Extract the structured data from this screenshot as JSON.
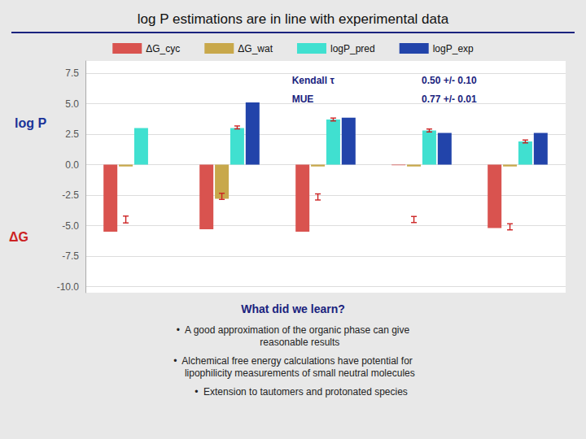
{
  "chart_data": {
    "type": "bar",
    "title": "log P estimations are in line with experimental data",
    "categories": [
      null,
      null,
      null,
      null,
      null
    ],
    "series": [
      {
        "name": "ΔG_cyc",
        "color": "#d9534f",
        "values": [
          -5.5,
          -5.3,
          -5.5,
          -0.05,
          -5.2
        ]
      },
      {
        "name": "ΔG_wat",
        "color": "#c8a84b",
        "values": [
          -0.15,
          -2.8,
          -0.15,
          -0.15,
          -0.15
        ],
        "error_bars": [
          {
            "value": -4.5,
            "yerr": 0.28
          },
          {
            "value": -2.6,
            "yerr": 0.25
          },
          {
            "value": -2.65,
            "yerr": 0.25
          },
          {
            "value": -4.5,
            "yerr": 0.25
          },
          {
            "value": -5.1,
            "yerr": 0.25
          }
        ]
      },
      {
        "name": "logP_pred",
        "color": "#40e0d0",
        "values": [
          3.0,
          3.0,
          3.7,
          2.8,
          1.9
        ],
        "error_bars": [
          null,
          {
            "value": 3.05,
            "yerr": 0.12
          },
          {
            "value": 3.7,
            "yerr": 0.12
          },
          {
            "value": 2.8,
            "yerr": 0.12
          },
          {
            "value": 1.9,
            "yerr": 0.12
          }
        ]
      },
      {
        "name": "logP_exp",
        "color": "#2244aa",
        "values": [
          0.0,
          5.1,
          3.85,
          2.6,
          2.6
        ]
      }
    ],
    "ylim": [
      -10.5,
      8.5
    ],
    "yticks": [
      {
        "value": -10,
        "label": "-10.0"
      },
      {
        "value": -7.5,
        "label": "-7.5"
      },
      {
        "value": -5,
        "label": "-5.0"
      },
      {
        "value": -2.5,
        "label": "-2.5"
      },
      {
        "value": 0,
        "label": "0.0"
      },
      {
        "value": 2.5,
        "label": "2.5"
      },
      {
        "value": 5,
        "label": "5.0"
      },
      {
        "value": 7.5,
        "label": "7.5"
      }
    ],
    "grid": true,
    "legend": "top",
    "tick_labels": "y",
    "annotations": [
      "log P",
      "ΔG",
      "Kendall τ",
      "MUE",
      "0.50 +/- 0.10",
      "0.77 +/- 0.01",
      "What did we learn?",
      "•  A good approximation of the organic phase can give\n     reasonable results",
      "•  Alchemical free energy calculations have potential for\n     lipophilicity measurements of small neutral molecules",
      "      •  Extension to tautomers and protonated species"
    ]
  }
}
